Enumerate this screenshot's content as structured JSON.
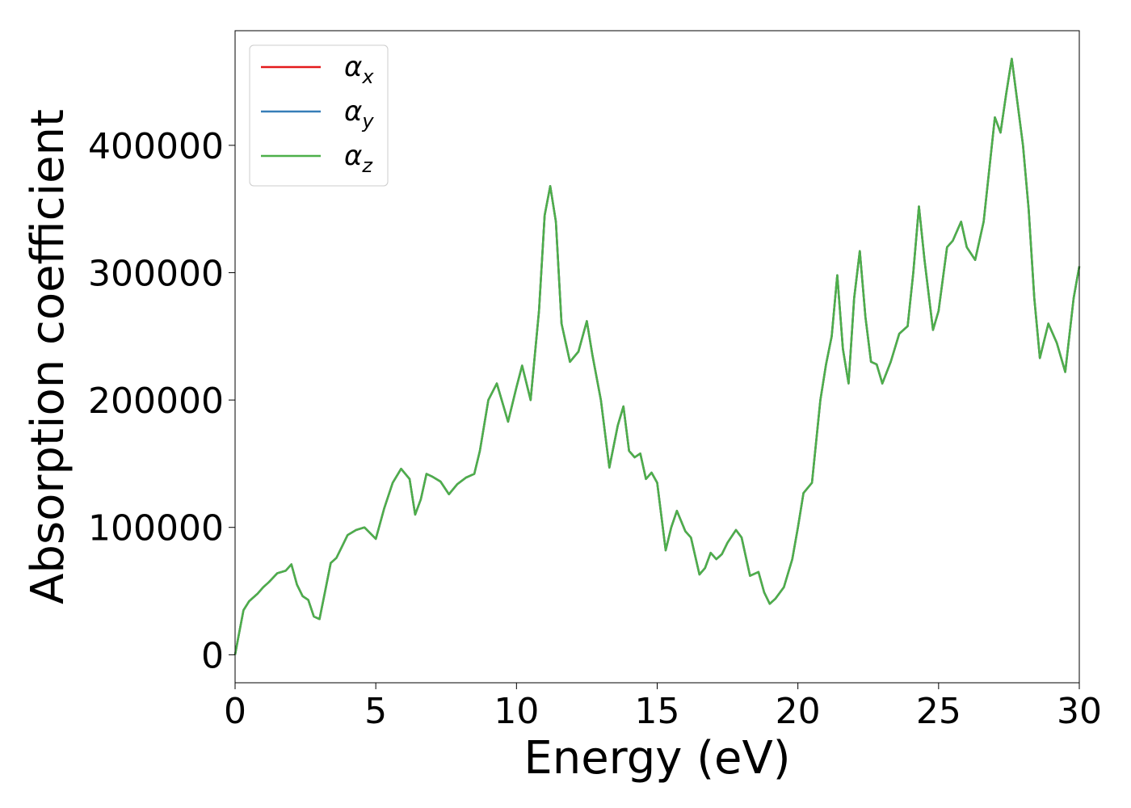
{
  "chart_data": {
    "type": "line",
    "xlabel": "Energy (eV)",
    "ylabel": "Absorption coefficient",
    "xlim": [
      0,
      30
    ],
    "ylim": [
      -22000,
      490000
    ],
    "x_ticks": [
      0,
      5,
      10,
      15,
      20,
      25,
      30
    ],
    "y_ticks": [
      0,
      100000,
      200000,
      300000,
      400000
    ],
    "legend_position": "top-left",
    "grid": false,
    "series": [
      {
        "name": "α",
        "subscript": "x",
        "color": "#e41a1c",
        "ref": 0
      },
      {
        "name": "α",
        "subscript": "y",
        "color": "#377eb8",
        "ref": 0
      },
      {
        "name": "α",
        "subscript": "z",
        "color": "#4daf4a",
        "ref": 0
      }
    ],
    "x": [
      0,
      0.1,
      0.3,
      0.5,
      0.8,
      1.0,
      1.2,
      1.5,
      1.8,
      2.0,
      2.2,
      2.4,
      2.6,
      2.8,
      3.0,
      3.2,
      3.4,
      3.6,
      3.8,
      4.0,
      4.3,
      4.6,
      5.0,
      5.3,
      5.6,
      5.9,
      6.2,
      6.4,
      6.6,
      6.8,
      7.0,
      7.3,
      7.6,
      7.9,
      8.2,
      8.5,
      8.7,
      9.0,
      9.3,
      9.7,
      10.0,
      10.2,
      10.5,
      10.8,
      11.0,
      11.2,
      11.4,
      11.6,
      11.9,
      12.2,
      12.5,
      12.7,
      13.0,
      13.3,
      13.6,
      13.8,
      14.0,
      14.2,
      14.4,
      14.6,
      14.8,
      15.0,
      15.3,
      15.5,
      15.7,
      16.0,
      16.2,
      16.5,
      16.7,
      16.9,
      17.1,
      17.3,
      17.5,
      17.8,
      18.0,
      18.3,
      18.6,
      18.8,
      19.0,
      19.2,
      19.5,
      19.8,
      20.0,
      20.2,
      20.5,
      20.8,
      21.0,
      21.2,
      21.4,
      21.6,
      21.8,
      22.0,
      22.2,
      22.4,
      22.6,
      22.8,
      23.0,
      23.3,
      23.6,
      23.9,
      24.1,
      24.3,
      24.5,
      24.8,
      25.0,
      25.3,
      25.5,
      25.8,
      26.0,
      26.3,
      26.6,
      27.0,
      27.2,
      27.4,
      27.6,
      28.0,
      28.2,
      28.4,
      28.6,
      28.9,
      29.2,
      29.5,
      29.8,
      30.0
    ],
    "values": [
      0,
      12000,
      35000,
      42000,
      48000,
      53000,
      57000,
      64000,
      66000,
      71000,
      55000,
      46000,
      43000,
      30000,
      28000,
      50000,
      72000,
      76000,
      85000,
      94000,
      98000,
      100000,
      91000,
      115000,
      135000,
      146000,
      138000,
      110000,
      122000,
      142000,
      140000,
      136000,
      126000,
      134000,
      139000,
      142000,
      160000,
      200000,
      213000,
      183000,
      210000,
      227000,
      200000,
      270000,
      345000,
      368000,
      340000,
      260000,
      230000,
      238000,
      262000,
      235000,
      200000,
      147000,
      180000,
      195000,
      160000,
      155000,
      158000,
      138000,
      143000,
      135000,
      82000,
      100000,
      113000,
      97000,
      92000,
      63000,
      68000,
      80000,
      75000,
      79000,
      88000,
      98000,
      92000,
      62000,
      65000,
      49000,
      40000,
      44000,
      53000,
      75000,
      100000,
      127000,
      135000,
      200000,
      228000,
      250000,
      298000,
      240000,
      213000,
      280000,
      317000,
      265000,
      230000,
      228000,
      213000,
      230000,
      252000,
      258000,
      300000,
      352000,
      310000,
      255000,
      270000,
      320000,
      325000,
      340000,
      320000,
      310000,
      340000,
      422000,
      410000,
      440000,
      468000,
      400000,
      350000,
      280000,
      233000,
      260000,
      245000,
      222000,
      280000,
      305000
    ]
  }
}
